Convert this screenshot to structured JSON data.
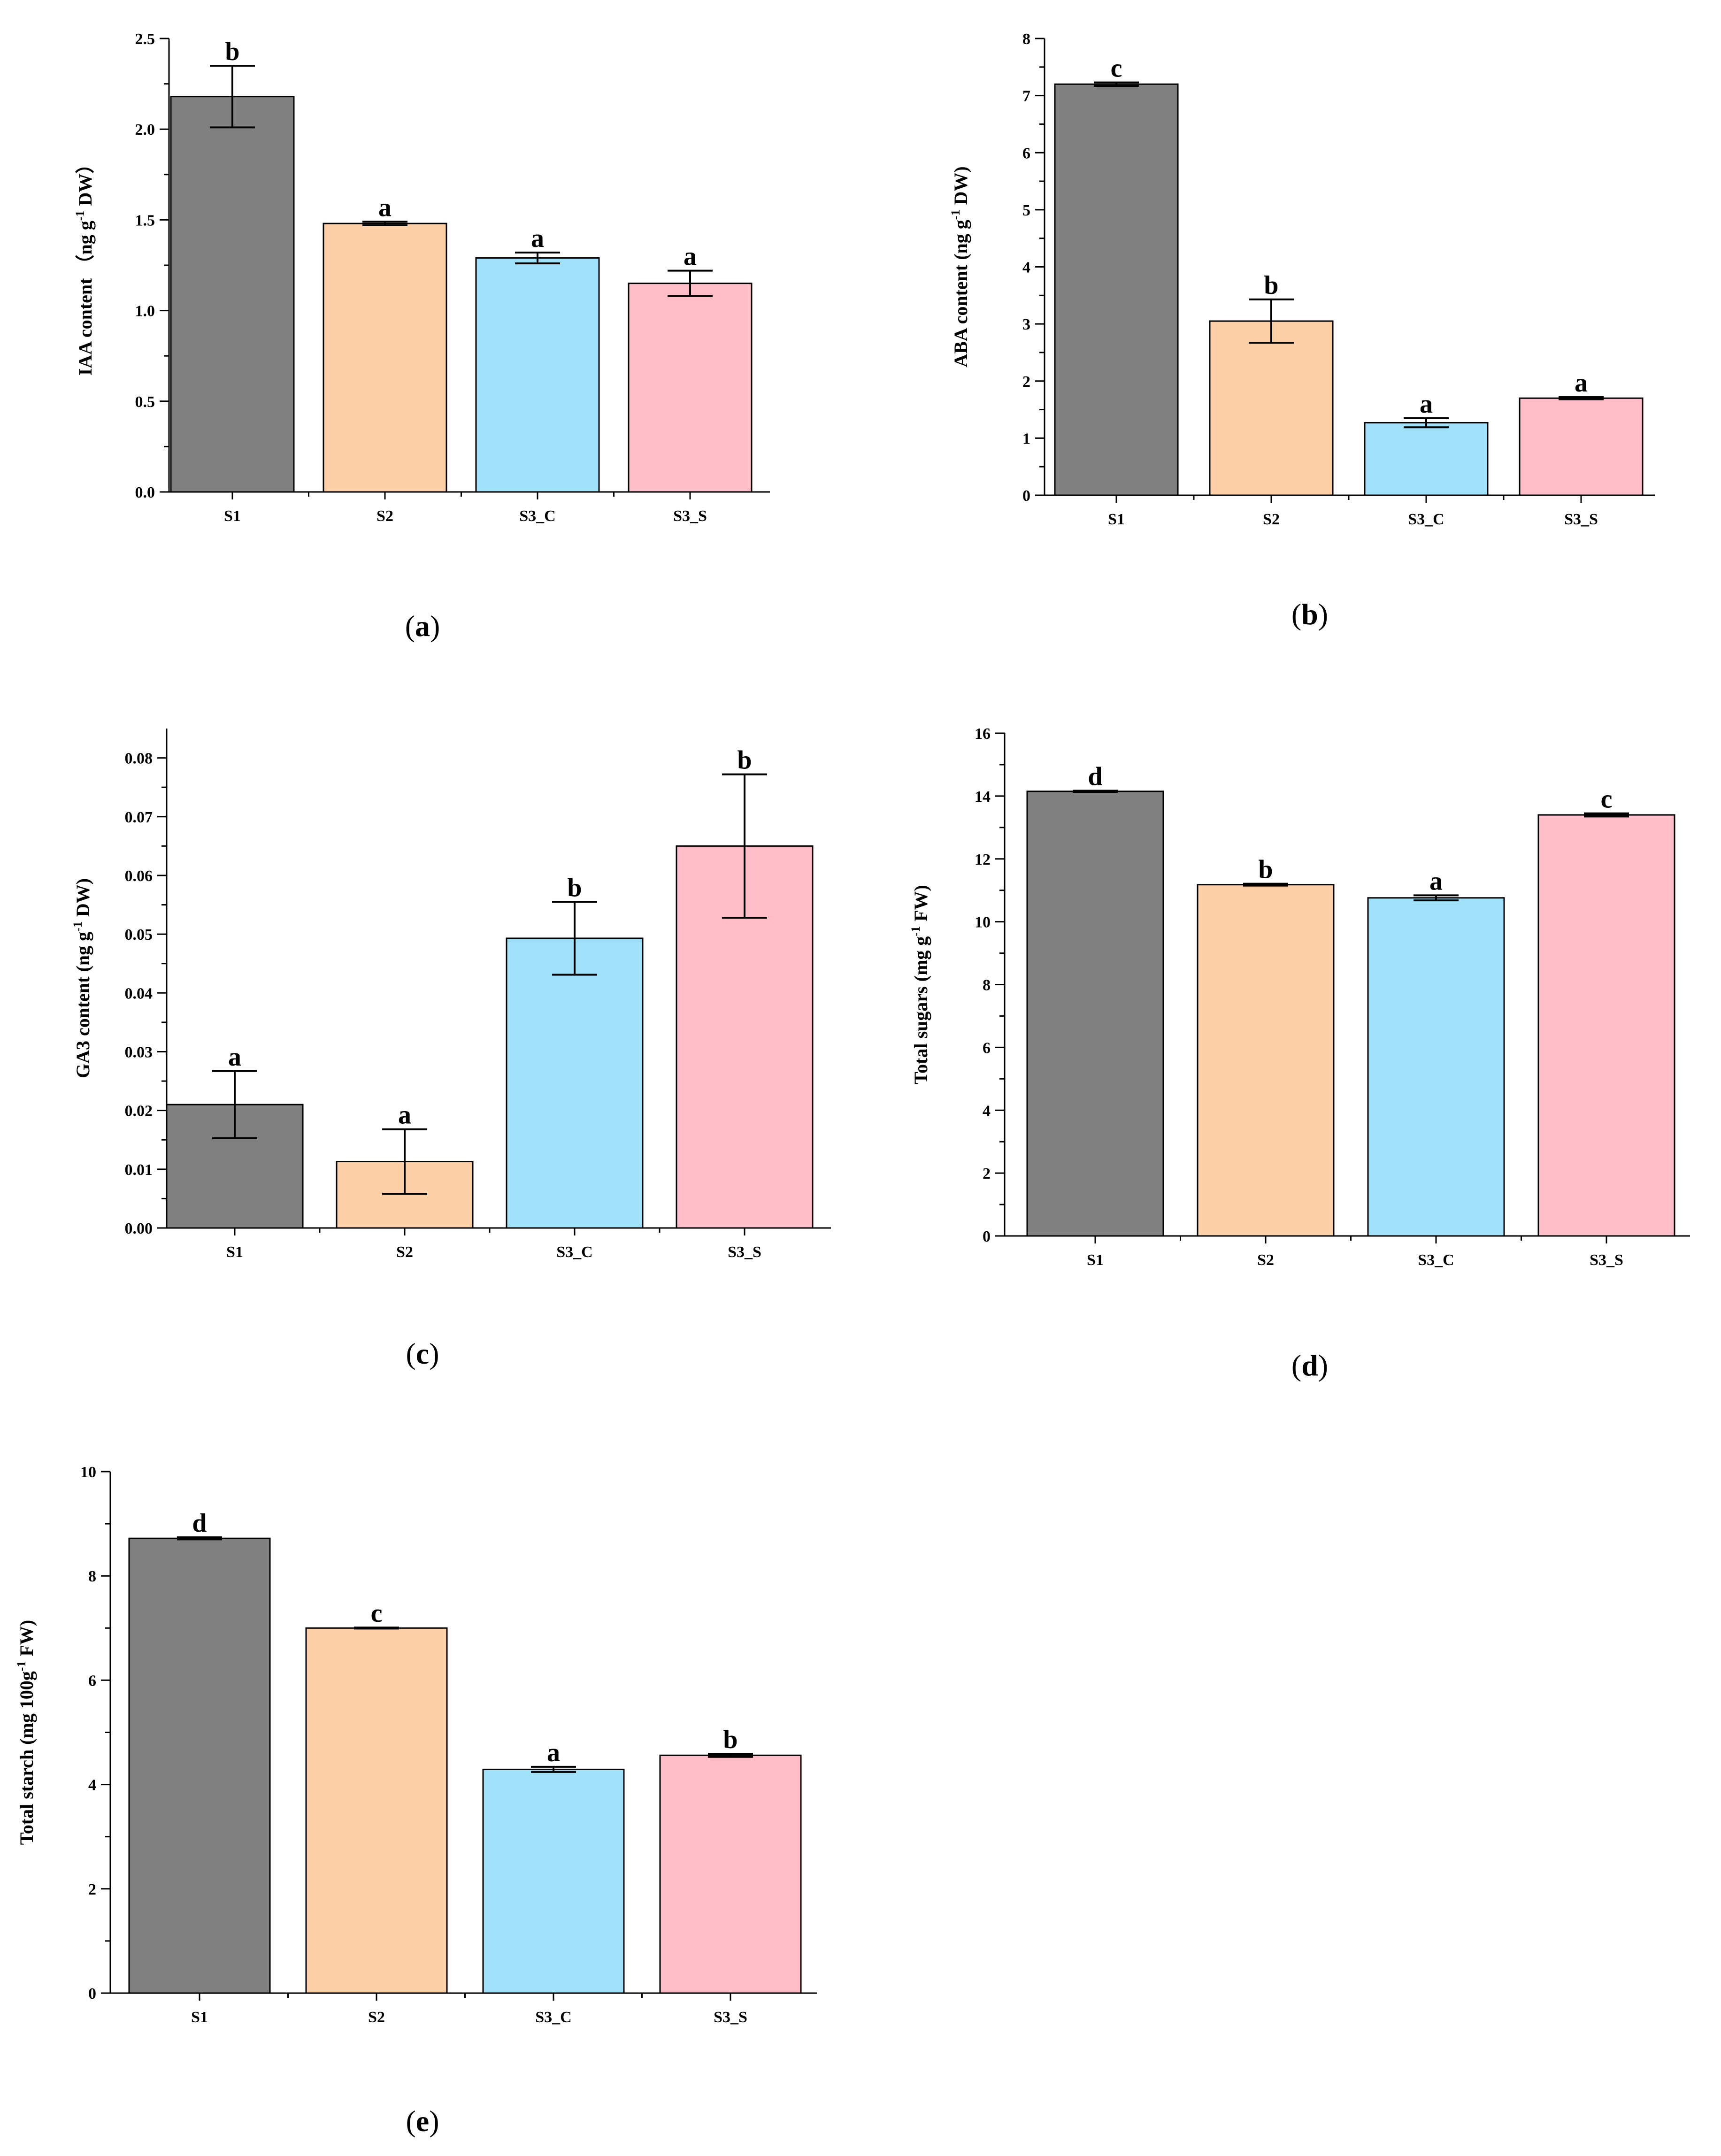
{
  "colors": {
    "S1": "#808080",
    "S2": "#FDD0A8",
    "S3_C": "#A0E0F8",
    "S3_S": "#FFBDC8"
  },
  "chart_data": [
    {
      "type": "bar",
      "panel": "a",
      "categories": [
        "S1",
        "S2",
        "S3_C",
        "S3_S"
      ],
      "values": [
        2.18,
        1.48,
        1.29,
        1.15
      ],
      "errors": [
        0.17,
        0.01,
        0.03,
        0.07
      ],
      "significance": [
        "b",
        "a",
        "a",
        "a"
      ],
      "ylabel_parts": [
        "IAA content （ng g",
        "-1",
        " DW）"
      ],
      "ylim": [
        0,
        2.5
      ],
      "yticks": [
        0.0,
        0.5,
        1.0,
        1.5,
        2.0,
        2.5
      ],
      "ytick_labels": [
        "0.0",
        "0.5",
        "1.0",
        "1.5",
        "2.0",
        "2.5"
      ],
      "minor_ticks": true
    },
    {
      "type": "bar",
      "panel": "b",
      "categories": [
        "S1",
        "S2",
        "S3_C",
        "S3_S"
      ],
      "values": [
        7.2,
        3.05,
        1.27,
        1.7
      ],
      "errors": [
        0.03,
        0.38,
        0.08,
        0.02
      ],
      "significance": [
        "c",
        "b",
        "a",
        "a"
      ],
      "ylabel_parts": [
        "ABA content (ng g",
        "-1",
        " DW)"
      ],
      "ylim": [
        0,
        8
      ],
      "yticks": [
        0,
        1,
        2,
        3,
        4,
        5,
        6,
        7,
        8
      ],
      "ytick_labels": [
        "0",
        "1",
        "2",
        "3",
        "4",
        "5",
        "6",
        "7",
        "8"
      ],
      "minor_ticks": true
    },
    {
      "type": "bar",
      "panel": "c",
      "categories": [
        "S1",
        "S2",
        "S3_C",
        "S3_S"
      ],
      "values": [
        0.021,
        0.0113,
        0.0493,
        0.065
      ],
      "errors": [
        0.0057,
        0.0055,
        0.0062,
        0.0122
      ],
      "significance": [
        "a",
        "a",
        "b",
        "b"
      ],
      "ylabel_parts": [
        "GA3 content (ng g",
        "-1",
        " DW)"
      ],
      "ylim": [
        0,
        0.085
      ],
      "yticks": [
        0.0,
        0.01,
        0.02,
        0.03,
        0.04,
        0.05,
        0.06,
        0.07,
        0.08
      ],
      "ytick_labels": [
        "0.00",
        "0.01",
        "0.02",
        "0.03",
        "0.04",
        "0.05",
        "0.06",
        "0.07",
        "0.08"
      ],
      "minor_ticks": true
    },
    {
      "type": "bar",
      "panel": "d",
      "categories": [
        "S1",
        "S2",
        "S3_C",
        "S3_S"
      ],
      "values": [
        14.15,
        11.18,
        10.76,
        13.4
      ],
      "errors": [
        0.02,
        0.03,
        0.08,
        0.05
      ],
      "significance": [
        "d",
        "b",
        "a",
        "c"
      ],
      "ylabel_parts": [
        "Total sugars (mg g",
        "-1",
        " FW)"
      ],
      "ylim": [
        0,
        16
      ],
      "yticks": [
        0,
        2,
        4,
        6,
        8,
        10,
        12,
        14,
        16
      ],
      "ytick_labels": [
        "0",
        "2",
        "4",
        "6",
        "8",
        "10",
        "12",
        "14",
        "16"
      ],
      "minor_ticks": true
    },
    {
      "type": "bar",
      "panel": "e",
      "categories": [
        "S1",
        "S2",
        "S3_C",
        "S3_S"
      ],
      "values": [
        8.72,
        7.0,
        4.29,
        4.56
      ],
      "errors": [
        0.02,
        0.01,
        0.05,
        0.03
      ],
      "significance": [
        "d",
        "c",
        "a",
        "b"
      ],
      "ylabel_parts": [
        "Total starch (mg 100g",
        "-1",
        " FW)"
      ],
      "ylim": [
        0,
        10
      ],
      "yticks": [
        0,
        2,
        4,
        6,
        8,
        10
      ],
      "ytick_labels": [
        "0",
        "2",
        "4",
        "6",
        "8",
        "10"
      ],
      "minor_ticks": true
    }
  ],
  "panel_labels": [
    "a",
    "b",
    "c",
    "d",
    "e"
  ]
}
